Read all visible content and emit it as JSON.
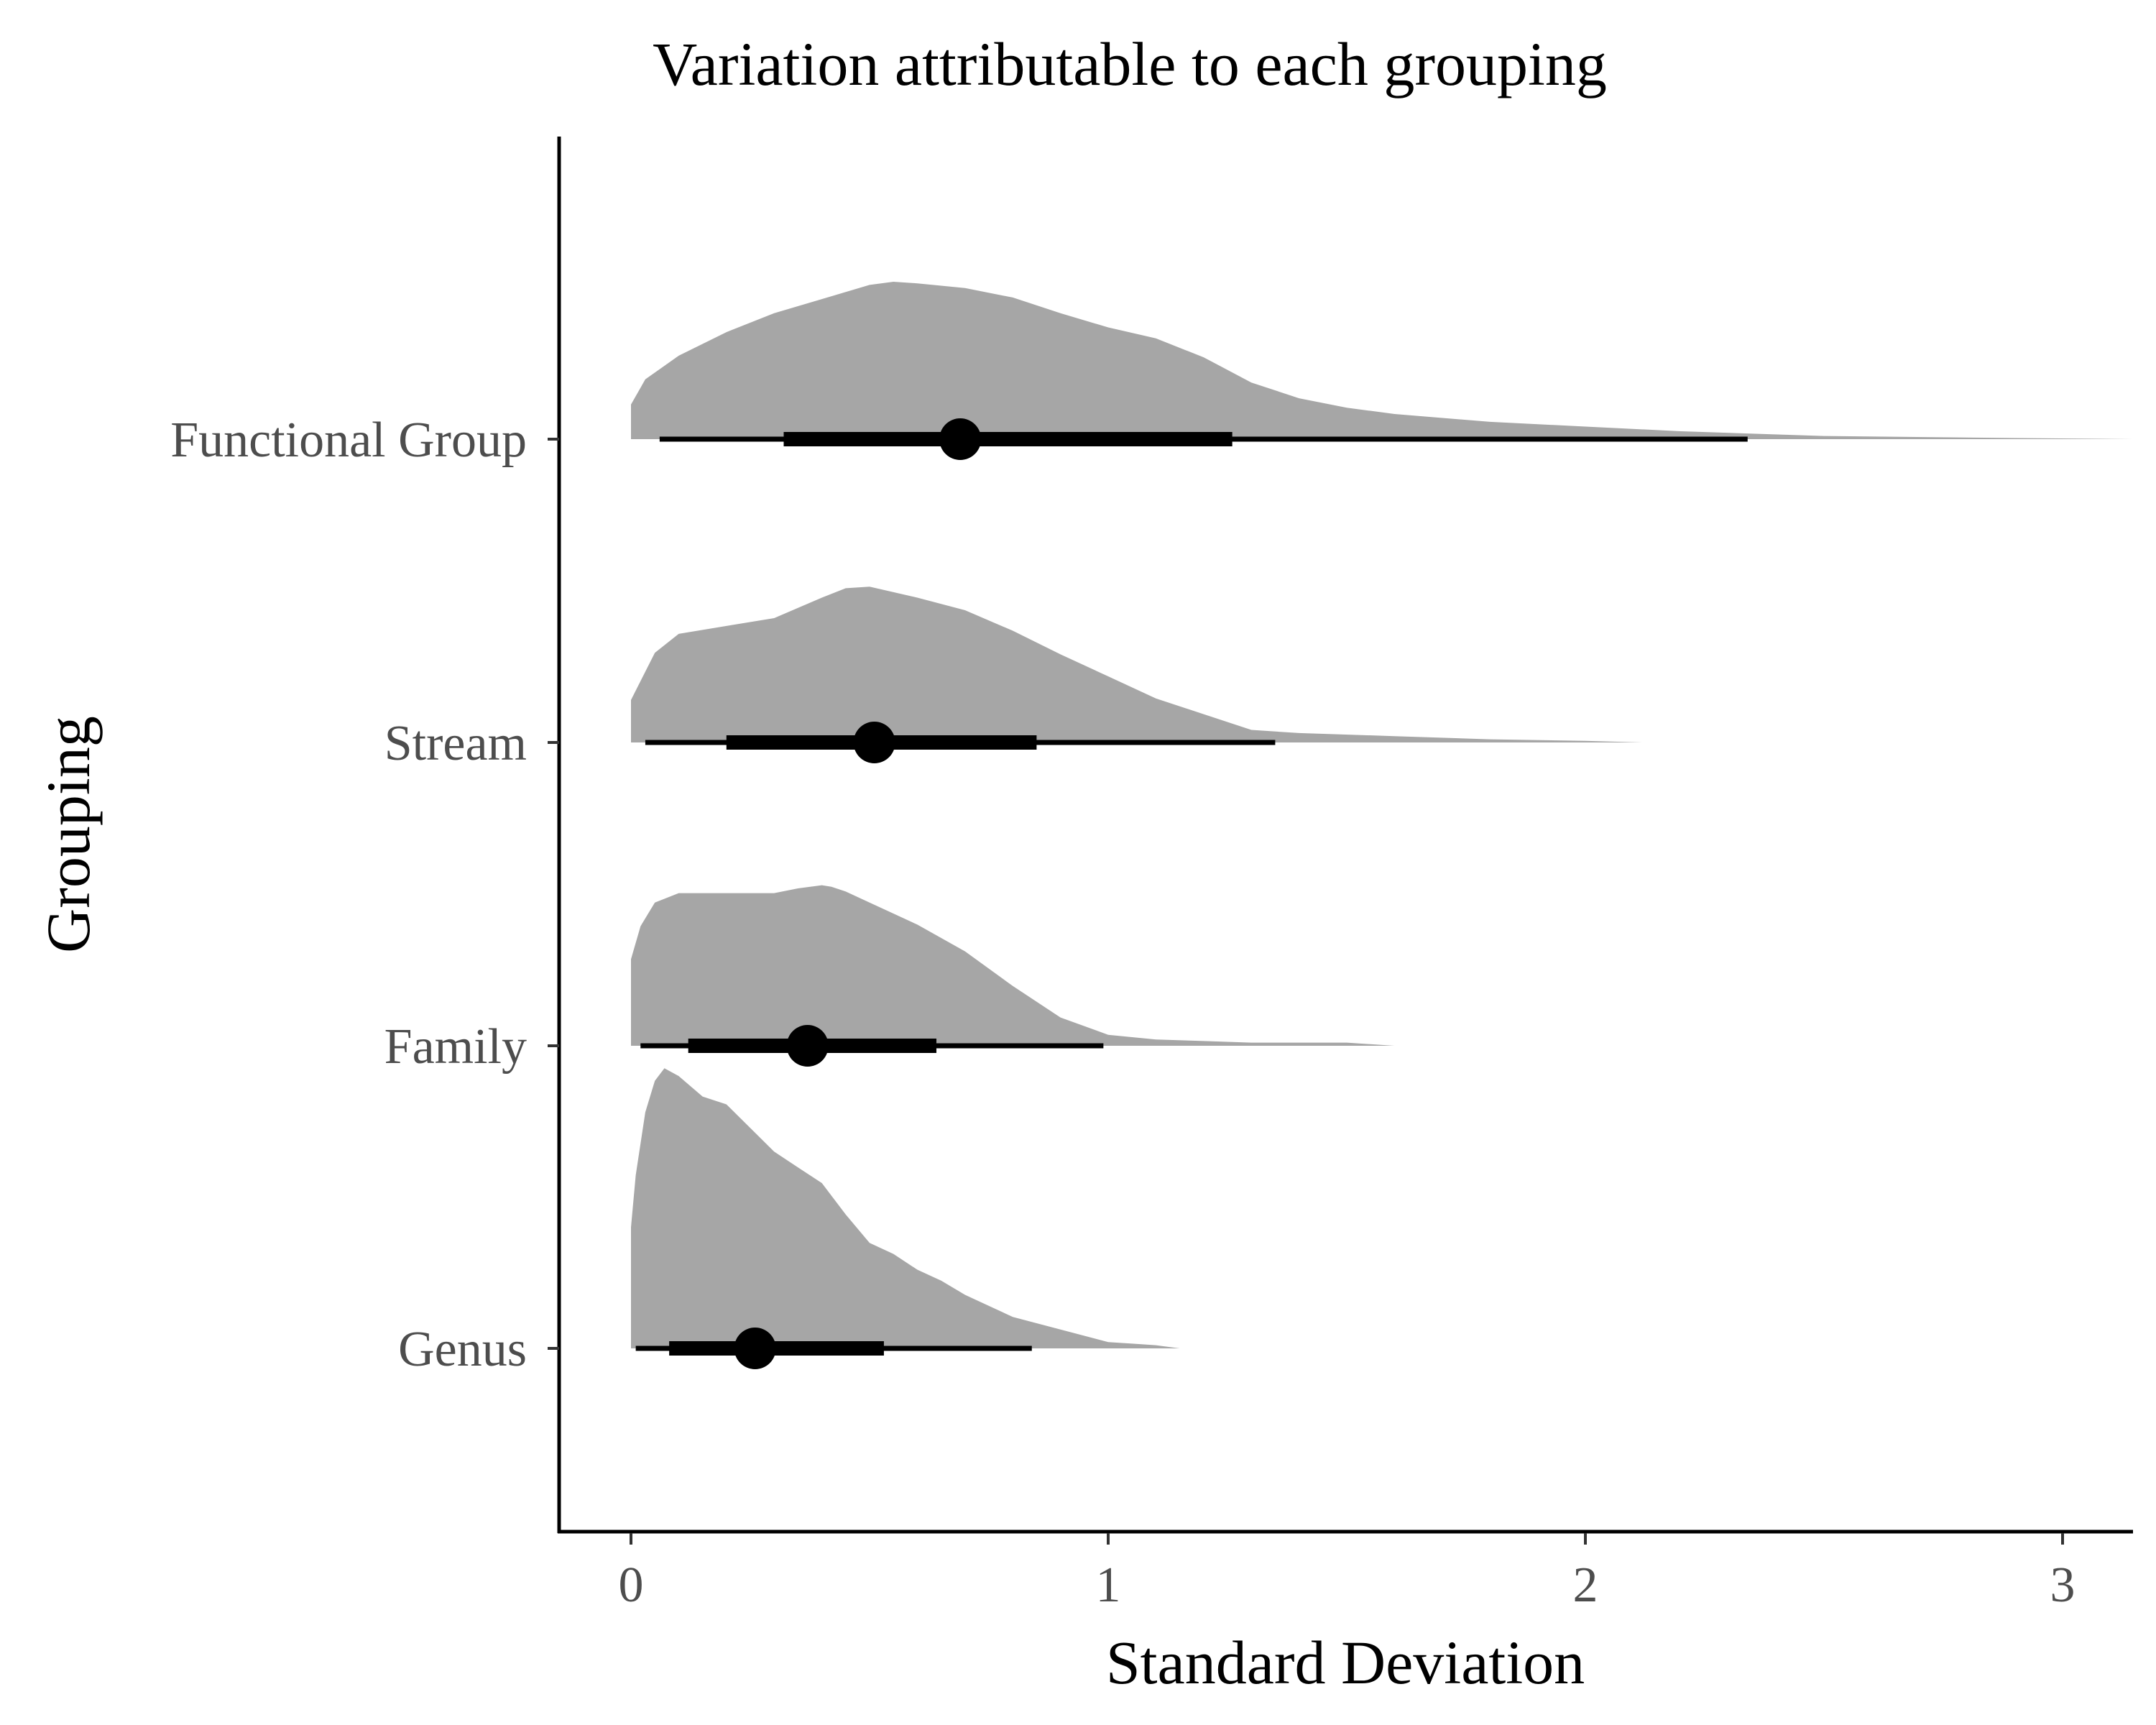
{
  "chart_data": {
    "type": "halfeye",
    "title": "Variation attributable to each grouping",
    "xlabel": "Standard Deviation",
    "ylabel": "Grouping",
    "xlim": [
      -0.15,
      3.15
    ],
    "x_ticks": [
      0,
      1,
      2,
      3
    ],
    "x_tick_labels": [
      "0",
      "1",
      "2",
      "3"
    ],
    "grid": false,
    "legend": "none",
    "colors": {
      "density": "#a6a6a6",
      "interval": "#000000",
      "axis": "#000000",
      "tick_label": "#4d4d4d"
    },
    "series": [
      {
        "name": "Functional Group",
        "median": 0.69,
        "interval_66": [
          0.32,
          1.26
        ],
        "interval_95": [
          0.06,
          2.34
        ],
        "density_x": [
          0.0,
          0.03,
          0.1,
          0.2,
          0.3,
          0.4,
          0.5,
          0.55,
          0.6,
          0.7,
          0.8,
          0.9,
          1.0,
          1.1,
          1.2,
          1.3,
          1.4,
          1.5,
          1.6,
          1.8,
          2.0,
          2.2,
          2.5,
          2.8,
          3.15
        ],
        "density_y": [
          0.22,
          0.38,
          0.53,
          0.68,
          0.8,
          0.89,
          0.98,
          1.0,
          0.99,
          0.96,
          0.9,
          0.8,
          0.71,
          0.64,
          0.52,
          0.36,
          0.26,
          0.2,
          0.16,
          0.11,
          0.08,
          0.05,
          0.02,
          0.01,
          0.0
        ]
      },
      {
        "name": "Stream",
        "median": 0.51,
        "interval_66": [
          0.2,
          0.85
        ],
        "interval_95": [
          0.03,
          1.35
        ],
        "density_x": [
          0.0,
          0.05,
          0.1,
          0.2,
          0.3,
          0.4,
          0.45,
          0.5,
          0.6,
          0.7,
          0.8,
          0.9,
          1.0,
          1.1,
          1.2,
          1.3,
          1.4,
          1.6,
          1.8,
          2.0,
          2.12
        ],
        "density_y": [
          0.27,
          0.57,
          0.69,
          0.74,
          0.79,
          0.92,
          0.98,
          0.99,
          0.92,
          0.84,
          0.71,
          0.56,
          0.42,
          0.28,
          0.18,
          0.08,
          0.06,
          0.04,
          0.02,
          0.01,
          0.0
        ]
      },
      {
        "name": "Family",
        "median": 0.37,
        "interval_66": [
          0.12,
          0.64
        ],
        "interval_95": [
          0.02,
          0.99
        ],
        "density_x": [
          0.0,
          0.02,
          0.05,
          0.1,
          0.2,
          0.3,
          0.35,
          0.4,
          0.42,
          0.45,
          0.5,
          0.6,
          0.7,
          0.8,
          0.9,
          1.0,
          1.1,
          1.2,
          1.3,
          1.4,
          1.5,
          1.6
        ],
        "density_y": [
          0.55,
          0.76,
          0.91,
          0.97,
          0.97,
          0.97,
          1.0,
          1.02,
          1.01,
          0.98,
          0.91,
          0.77,
          0.6,
          0.38,
          0.18,
          0.07,
          0.04,
          0.03,
          0.02,
          0.02,
          0.02,
          0.0
        ]
      },
      {
        "name": "Genus",
        "median": 0.26,
        "interval_66": [
          0.08,
          0.53
        ],
        "interval_95": [
          0.01,
          0.84
        ],
        "density_x": [
          0.0,
          0.01,
          0.03,
          0.05,
          0.07,
          0.1,
          0.15,
          0.2,
          0.25,
          0.3,
          0.35,
          0.4,
          0.45,
          0.5,
          0.55,
          0.6,
          0.65,
          0.7,
          0.75,
          0.8,
          0.85,
          0.9,
          1.0,
          1.05,
          1.1,
          1.15
        ],
        "density_y": [
          0.77,
          1.1,
          1.5,
          1.7,
          1.78,
          1.73,
          1.6,
          1.55,
          1.4,
          1.25,
          1.15,
          1.05,
          0.85,
          0.67,
          0.6,
          0.5,
          0.43,
          0.34,
          0.27,
          0.2,
          0.16,
          0.12,
          0.04,
          0.03,
          0.02,
          0.0
        ]
      }
    ]
  }
}
